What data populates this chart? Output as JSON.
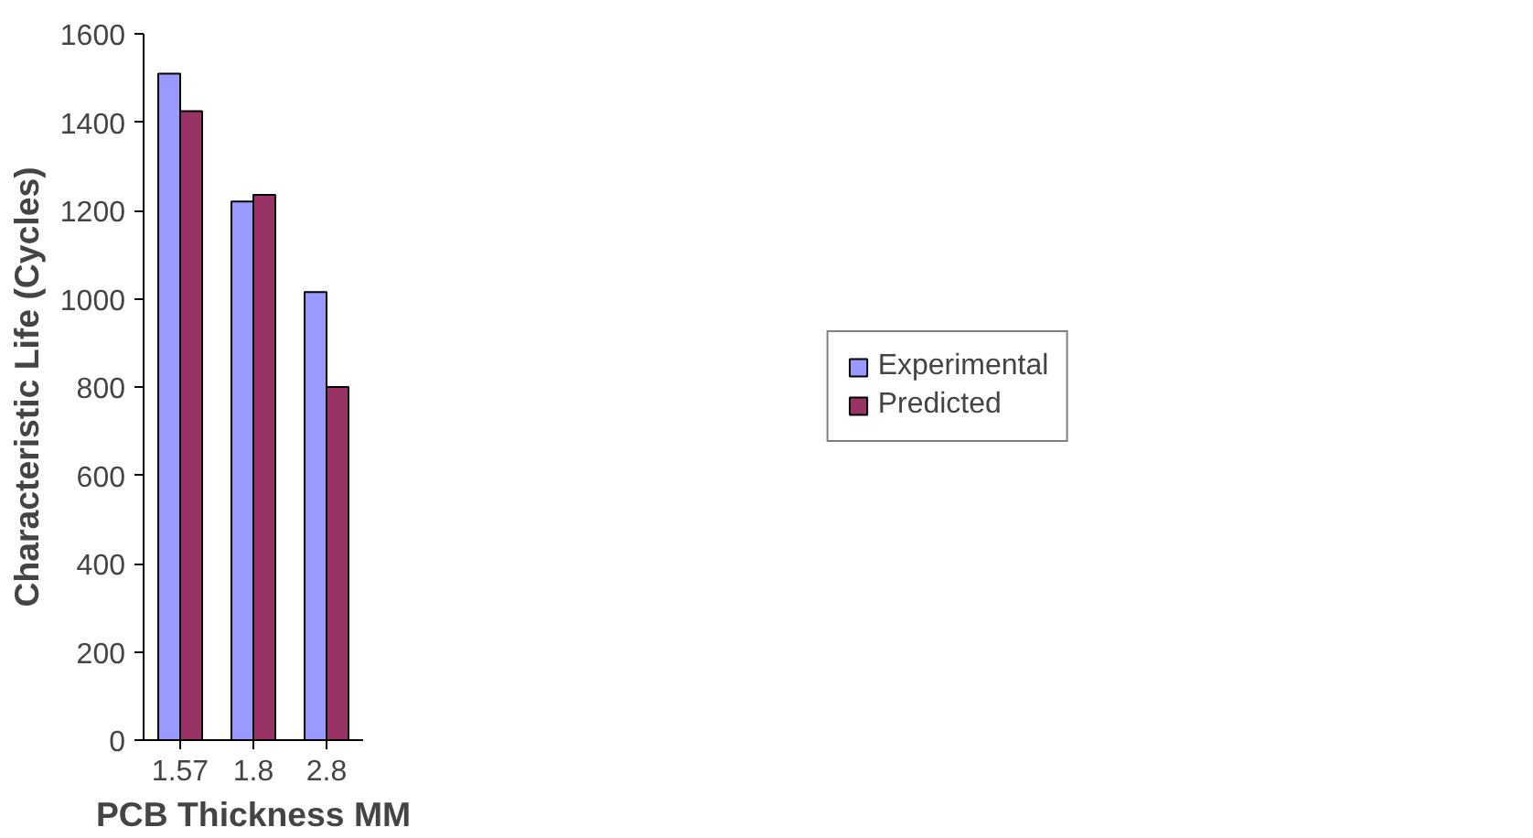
{
  "chart_data": {
    "type": "bar",
    "xlabel": "PCB Thickness MM",
    "ylabel": "Characteristic Life (Cycles)",
    "categories": [
      "1.57",
      "1.8",
      "2.8"
    ],
    "series": [
      {
        "name": "Experimental",
        "color": "#9999ff",
        "values": [
          1510,
          1220,
          1015
        ]
      },
      {
        "name": "Predicted",
        "color": "#993366",
        "values": [
          1425,
          1235,
          800
        ]
      }
    ],
    "ylim": [
      0,
      1600
    ],
    "yticks": [
      0,
      200,
      400,
      600,
      800,
      1000,
      1200,
      1400,
      1600
    ],
    "grid": false,
    "legend": "right"
  }
}
